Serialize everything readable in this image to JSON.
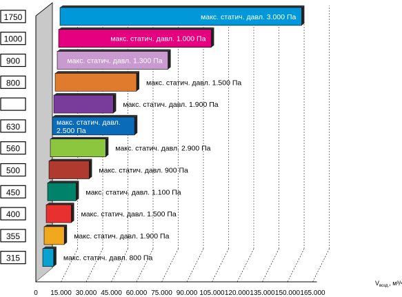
{
  "chart_data": {
    "type": "bar",
    "orientation": "horizontal",
    "style": "3d",
    "categories": [
      "1750",
      "1000",
      "900",
      "800",
      "",
      "630",
      "560",
      "500",
      "450",
      "400",
      "355",
      "315"
    ],
    "values": [
      144000,
      91000,
      66000,
      48500,
      35500,
      49000,
      33000,
      24000,
      17000,
      15000,
      12000,
      6500
    ],
    "labels": [
      "макс. статич. давл.  3.000 Па",
      "макс. статич. давл.  1.000 Па",
      "макс. статич. давл. 1.300 Па",
      "макс. статич. давл. 1.500 Па",
      "макс. статич. давл. 1.900 Па",
      "макс. статич. давл. 2.500 Па",
      "макс. статич. давл. 2.900 Па",
      "макс. статич. давл. 900 Па",
      "макс. статич. давл. 1.100 Па",
      "макс. статич. давл. 1.500 Па",
      "макс. статич. давл. 1.900 Па",
      "макс. статич. давл. 800 Па"
    ],
    "label_inside": [
      true,
      true,
      true,
      false,
      false,
      true,
      false,
      false,
      false,
      false,
      false,
      false
    ],
    "colors": [
      "#0098d8",
      "#e4007f",
      "#c99ad0",
      "#e07a2c",
      "#7a3c9a",
      "#0a6bb8",
      "#8cc63f",
      "#b03a2e",
      "#00826a",
      "#e8312f",
      "#f2a81d",
      "#0aa0d0"
    ],
    "label_colors": [
      "#ffffff",
      "#ffffff",
      "#ffffff",
      "#000000",
      "#000000",
      "#ffffff",
      "#000000",
      "#000000",
      "#000000",
      "#000000",
      "#000000",
      "#000000"
    ],
    "x_ticks": [
      "0",
      "15.000",
      "30.000",
      "45.000",
      "60.000",
      "75.000",
      "90.000",
      "105.000",
      "120.000",
      "135.000",
      "150.000",
      "165.000"
    ],
    "xlim": [
      0,
      165000
    ],
    "xlabel": "V",
    "xlabel_sub": "возд.",
    "xlabel_unit": ", м³/ч",
    "grid": true
  }
}
